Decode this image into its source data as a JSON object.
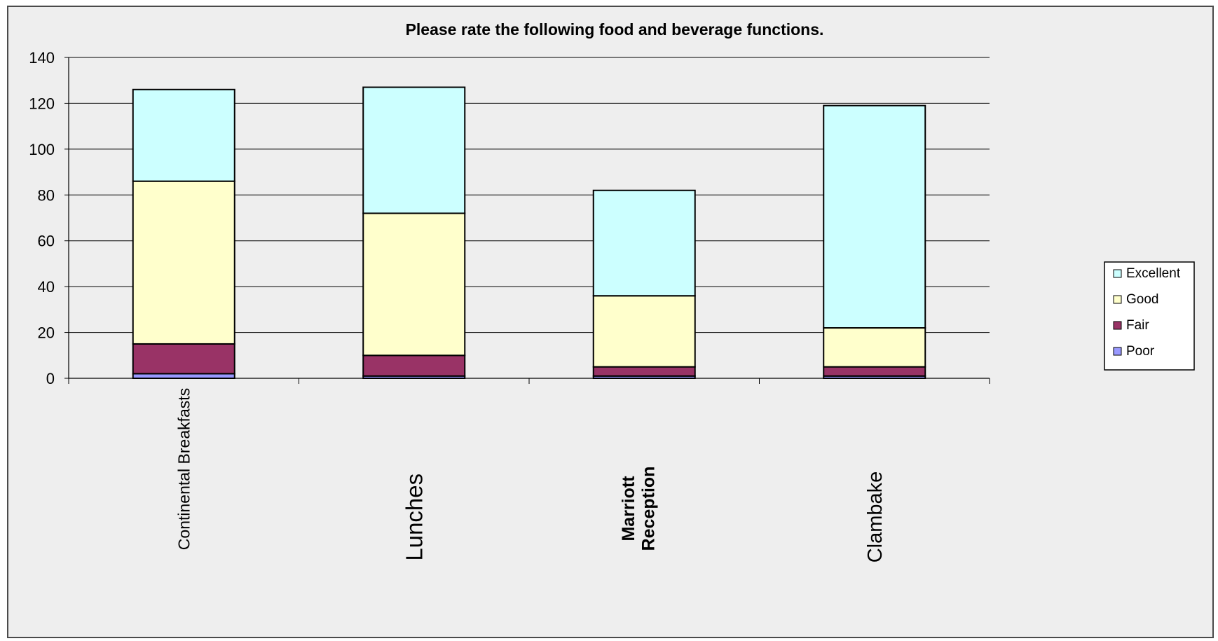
{
  "chart_data": {
    "type": "bar",
    "stacked": true,
    "title": "Please rate the following food and beverage functions.",
    "categories": [
      "Continental Breakfasts",
      "Lunches",
      "Marriott Reception",
      "Clambake"
    ],
    "series": [
      {
        "name": "Poor",
        "values": [
          2,
          1,
          1,
          1
        ],
        "color": "#9999ff"
      },
      {
        "name": "Fair",
        "values": [
          13,
          9,
          4,
          4
        ],
        "color": "#993366"
      },
      {
        "name": "Good",
        "values": [
          71,
          62,
          31,
          17
        ],
        "color": "#ffffcc"
      },
      {
        "name": "Excellent",
        "values": [
          40,
          55,
          46,
          97
        ],
        "color": "#ccffff"
      }
    ],
    "ylim": [
      0,
      140
    ],
    "yticks": [
      "0",
      "20",
      "40",
      "60",
      "80",
      "100",
      "120",
      "140"
    ],
    "grid": true,
    "legend_position": "right",
    "legend_order": [
      "Excellent",
      "Good",
      "Fair",
      "Poor"
    ],
    "xlabel": "",
    "ylabel": ""
  },
  "colors": {
    "background": "#eeeeee",
    "gridline": "#000000",
    "bar_border": "#000000"
  }
}
